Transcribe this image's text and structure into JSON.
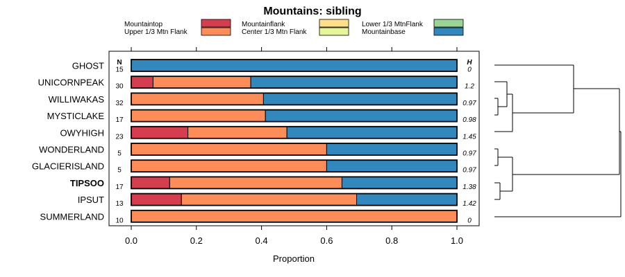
{
  "chart_data": {
    "type": "bar",
    "orientation": "horizontal",
    "stacked": true,
    "title": "Mountains: sibling",
    "xlabel": "Proportion",
    "xlim": [
      0,
      1
    ],
    "xticks": [
      "0.0",
      "0.2",
      "0.4",
      "0.6",
      "0.8",
      "1.0"
    ],
    "xtick_values": [
      0,
      0.2,
      0.4,
      0.6,
      0.8,
      1.0
    ],
    "n_header": "N",
    "h_header": "H",
    "categories": [
      "GHOST",
      "UNICORNPEAK",
      "WILLIWAKAS",
      "MYSTICLAKE",
      "OWYHIGH",
      "WONDERLAND",
      "GLACIERISLAND",
      "TIPSOO",
      "IPSUT",
      "SUMMERLAND"
    ],
    "bold_categories": [
      "TIPSOO"
    ],
    "n": [
      "15",
      "30",
      "32",
      "17",
      "23",
      "5",
      "5",
      "17",
      "13",
      "10"
    ],
    "h": [
      "0",
      "1.2",
      "0.97",
      "0.98",
      "1.45",
      "0.97",
      "0.97",
      "1.38",
      "1.42",
      "0"
    ],
    "series": [
      {
        "name": "Mountaintop",
        "color": "#d53e4f",
        "values": [
          0,
          0.067,
          0,
          0,
          0.174,
          0,
          0,
          0.118,
          0.154,
          0
        ]
      },
      {
        "name": "Upper 1/3 Mtn Flank",
        "color": "#fc8d59",
        "values": [
          0,
          0.3,
          0.406,
          0.412,
          0.304,
          0.6,
          0.6,
          0.529,
          0.538,
          1.0
        ]
      },
      {
        "name": "Mountainflank",
        "color": "#fee08b",
        "values": [
          0,
          0,
          0,
          0,
          0,
          0,
          0,
          0,
          0,
          0
        ]
      },
      {
        "name": "Center 1/3 Mtn Flank",
        "color": "#e6f598",
        "values": [
          0,
          0,
          0,
          0,
          0,
          0,
          0,
          0,
          0,
          0
        ]
      },
      {
        "name": "Lower 1/3 MtnFlank",
        "color": "#99d594",
        "values": [
          0,
          0,
          0,
          0,
          0,
          0,
          0,
          0,
          0,
          0
        ]
      },
      {
        "name": "Mountainbase",
        "color": "#3288bd",
        "values": [
          1.0,
          0.633,
          0.594,
          0.588,
          0.522,
          0.4,
          0.4,
          0.353,
          0.308,
          0
        ]
      }
    ],
    "dendrogram": "(((GHOST), ((UNICORNPEAK, (WILLIWAKAS, MYSTICLAKE)), OWYHIGH), ((WONDERLAND, GLACIERISLAND), (TIPSOO, IPSUT))), SUMMERLAND)"
  }
}
